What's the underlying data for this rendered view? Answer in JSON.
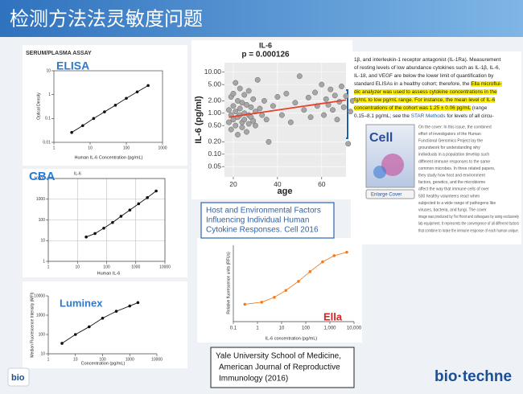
{
  "title": "检测方法法灵敏度问题",
  "section_label": "SERUM/PLASMA ASSAY",
  "chart_data": [
    {
      "type": "scatter",
      "title": "ELISA",
      "xlabel": "Human IL-6 Concentration (pg/mL)",
      "ylabel": "Optical Density",
      "xlog": true,
      "ylog": true,
      "xlim": [
        1,
        1000
      ],
      "ylim": [
        0.01,
        10
      ],
      "xticks": [
        1,
        10,
        100,
        1000
      ],
      "yticks": [
        0.01,
        0.1,
        1,
        10
      ],
      "series": [
        {
          "mode": "lines+markers",
          "color": "#111111",
          "x": [
            3.1,
            6.25,
            12.5,
            25,
            50,
            100,
            200,
            400
          ],
          "values": [
            0.026,
            0.05,
            0.1,
            0.19,
            0.36,
            0.7,
            1.3,
            2.4
          ]
        }
      ]
    },
    {
      "type": "scatter",
      "title": "CBA",
      "subtitle": "IL-6",
      "xlabel": "Human IL-6",
      "xlog": true,
      "ylog": true,
      "grid": true,
      "xlim": [
        1,
        10000
      ],
      "ylim": [
        1,
        10000
      ],
      "xticks": [
        1,
        10,
        100,
        1000,
        10000
      ],
      "yticks": [
        1,
        10,
        100,
        1000,
        10000
      ],
      "series": [
        {
          "mode": "lines+markers",
          "color": "#111111",
          "x": [
            20,
            40,
            80,
            160,
            312,
            625,
            1250,
            2500,
            5000
          ],
          "values": [
            15,
            22,
            40,
            75,
            150,
            300,
            600,
            1200,
            2500
          ]
        }
      ]
    },
    {
      "type": "scatter",
      "title": "Luminex",
      "xlabel": "Concentration (pg/mL)",
      "ylabel": "Median Fluorescence Intensity (MFI)",
      "xlog": true,
      "ylog": true,
      "xlim": [
        1,
        10000
      ],
      "ylim": [
        10,
        10000
      ],
      "xticks": [
        1,
        10,
        100,
        1000,
        10000
      ],
      "yticks": [
        10,
        100,
        1000,
        10000
      ],
      "series": [
        {
          "mode": "lines+markers",
          "color": "#111111",
          "x": [
            3.2,
            10,
            32,
            100,
            320,
            1000,
            2000
          ],
          "values": [
            35,
            100,
            250,
            700,
            1600,
            3000,
            4500
          ]
        }
      ]
    },
    {
      "type": "scatter",
      "title": "IL-6",
      "subtitle": "p = 0.000126",
      "xlabel": "age",
      "ylabel": "IL-6 (pg/ml)",
      "ylog": true,
      "grid": true,
      "xlim": [
        16,
        71
      ],
      "ylim": [
        0.028,
        17
      ],
      "xticks": [
        20,
        40,
        60
      ],
      "yticks": [
        {
          "value": 10,
          "label": "10.00"
        },
        {
          "value": 5,
          "label": "5.00"
        },
        {
          "value": 2,
          "label": "2.00"
        },
        {
          "value": 1,
          "label": "1.00"
        },
        {
          "value": 0.5,
          "label": "0.50"
        },
        {
          "value": 0.2,
          "label": "0.20"
        },
        {
          "value": 0.1,
          "label": "0.10"
        },
        {
          "value": 0.05,
          "label": "0.05"
        }
      ],
      "series": [
        {
          "mode": "markers",
          "color": "#a6a6a6",
          "x": [
            18,
            18,
            19,
            19,
            19,
            20,
            20,
            20,
            21,
            21,
            21,
            22,
            22,
            22,
            23,
            23,
            23,
            24,
            24,
            24,
            25,
            25,
            25,
            26,
            26,
            27,
            27,
            27,
            28,
            28,
            29,
            29,
            30,
            30,
            31,
            32,
            33,
            34,
            35,
            36,
            38,
            40,
            42,
            44,
            46,
            48,
            50,
            52,
            54,
            55,
            57,
            58,
            60,
            61,
            62,
            63,
            64,
            65,
            66,
            67,
            68,
            69,
            70,
            71,
            72,
            73,
            74
          ],
          "values": [
            1.2,
            0.6,
            2.5,
            0.9,
            0.4,
            1.5,
            3.0,
            0.7,
            0.5,
            1.1,
            5.5,
            0.8,
            2.0,
            0.3,
            1.3,
            0.9,
            4.0,
            0.6,
            1.8,
            0.45,
            1.0,
            2.8,
            0.7,
            1.6,
            0.35,
            0.9,
            3.5,
            0.55,
            1.4,
            0.8,
            2.2,
            0.65,
            1.1,
            0.5,
            6.5,
            1.3,
            0.9,
            2.0,
            0.7,
            0.2,
            1.5,
            2.5,
            0.9,
            3.0,
            0.6,
            1.8,
            8.0,
            1.2,
            2.4,
            0.8,
            3.2,
            1.5,
            5.0,
            0.9,
            2.2,
            1.6,
            3.8,
            1.2,
            2.7,
            0.7,
            1.9,
            4.5,
            1.4,
            2.6,
            0.18,
            1.1,
            2.0
          ]
        },
        {
          "mode": "lines",
          "color": "#e8402a",
          "x": [
            18,
            71
          ],
          "values": [
            0.8,
            2.1
          ]
        }
      ]
    },
    {
      "type": "scatter",
      "title": "Ella",
      "xlabel": "IL-6 concentration (pg/mL)",
      "ylabel": "Relative fluorescence units (RFUs)",
      "xlog": true,
      "xlim": [
        0.1,
        10000
      ],
      "ylim": [
        0,
        110
      ],
      "xticks": [
        0.1,
        1,
        10,
        100,
        {
          "value": 1000,
          "label": "1,000"
        },
        {
          "value": 10000,
          "label": "10,000"
        }
      ],
      "series": [
        {
          "mode": "lines+markers",
          "color": "#f07d22",
          "x": [
            0.3,
            1.5,
            5,
            15,
            50,
            150,
            500,
            1500,
            5000
          ],
          "values": [
            25,
            28,
            35,
            45,
            58,
            72,
            86,
            95,
            100
          ]
        }
      ]
    }
  ],
  "article": {
    "lines": [
      [
        {
          "text": "1β, and interleukin-1 receptor antagonist (IL-1Ra). Measurement"
        }
      ],
      [
        {
          "text": "of resting levels of low abundance cytokines such as IL-1β, IL-6,"
        }
      ],
      [
        {
          "text": "IL-18, and VEGF are below the lower limit of quantification by"
        }
      ],
      [
        {
          "text": "standard ELISAs in a healthy cohort; therefore, the "
        },
        {
          "text": "Ella microflui-",
          "highlight": true
        }
      ],
      [
        {
          "text": "dic analyzer was used to assess cytokine concentrations in the",
          "highlight": true
        }
      ],
      [
        {
          "text": "fg/mL to low pg/mL range. For instance, the mean level of IL-6",
          "highlight": true
        }
      ],
      [
        {
          "text": "concentrations of the cohort was 1.25 ± 0.06 pg/mL",
          "highlight": true
        },
        {
          "text": " (range"
        }
      ],
      [
        {
          "text": "0.15–8.1 pg/mL; see the "
        },
        {
          "text": "STAR Methods",
          "link": true
        },
        {
          "text": " for levels of all circu-"
        }
      ]
    ]
  },
  "cover": {
    "title": "Cell",
    "button": "Enlarge Cover",
    "lines": [
      "On the cover: In this issue, the combined",
      "effort of investigators of the Human",
      "Functional Genomics Project lay the",
      "groundwork for understanding why",
      "individuals in a population develop such",
      "different immune responses to the same",
      "common microbes. In three related papers,",
      "they study how host and environment",
      "factors, genetics, and the microbiome",
      "affect the way that immune cells of over",
      "500 healthy volunteers react when",
      "subjected to a wide range of pathogens like",
      "viruses, bacteria, and fungi. The cover",
      "image was produced by Ter Horst and colleagues by using exclusively",
      "lab equipment. It represents the convergence of all different factors",
      "that combine to make the immune response of each human unique."
    ]
  },
  "citation_cell": [
    "Host and Environmental Factors",
    "Influencing Individual Human",
    "Cytokine Responses. Cell 2016"
  ],
  "citation_yale": [
    "Yale University School of Medicine,",
    "American Journal of Reproductive",
    "Immunology (2016)"
  ],
  "logo": "bio·techne",
  "logo_small": "bio"
}
